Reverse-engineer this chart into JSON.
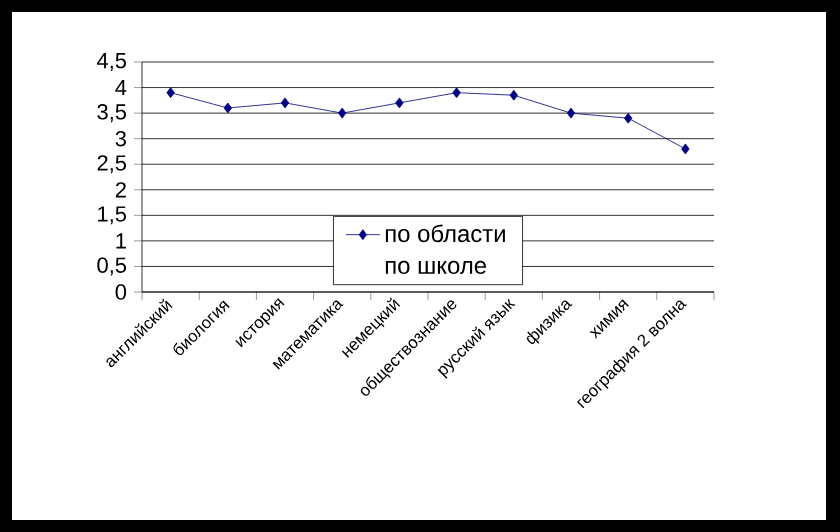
{
  "chart_data": {
    "type": "line",
    "categories": [
      "английский",
      "биология",
      "история",
      "математика",
      "немецкий",
      "обществознание",
      "русский язык",
      "физика",
      "химия",
      "география 2 волна"
    ],
    "series": [
      {
        "name": "по области",
        "color": "#000080",
        "values": [
          3.9,
          3.6,
          3.7,
          3.5,
          3.7,
          3.9,
          3.85,
          3.5,
          3.4,
          2.8
        ]
      },
      {
        "name": "по школе",
        "values": [
          null,
          null,
          null,
          null,
          null,
          null,
          null,
          null,
          null,
          null
        ]
      }
    ],
    "ylim": [
      0,
      4.5
    ],
    "yticks": [
      0,
      {
        "value": 0.5,
        "label": "0,5"
      },
      1,
      {
        "value": 1.5,
        "label": "1,5"
      },
      2,
      {
        "value": 2.5,
        "label": "2,5"
      },
      3,
      {
        "value": 3.5,
        "label": "3,5"
      },
      4,
      {
        "value": 4.5,
        "label": "4,5"
      }
    ],
    "grid": "y",
    "legend": "bottom",
    "marker": "diamond",
    "line_style": "solid"
  }
}
